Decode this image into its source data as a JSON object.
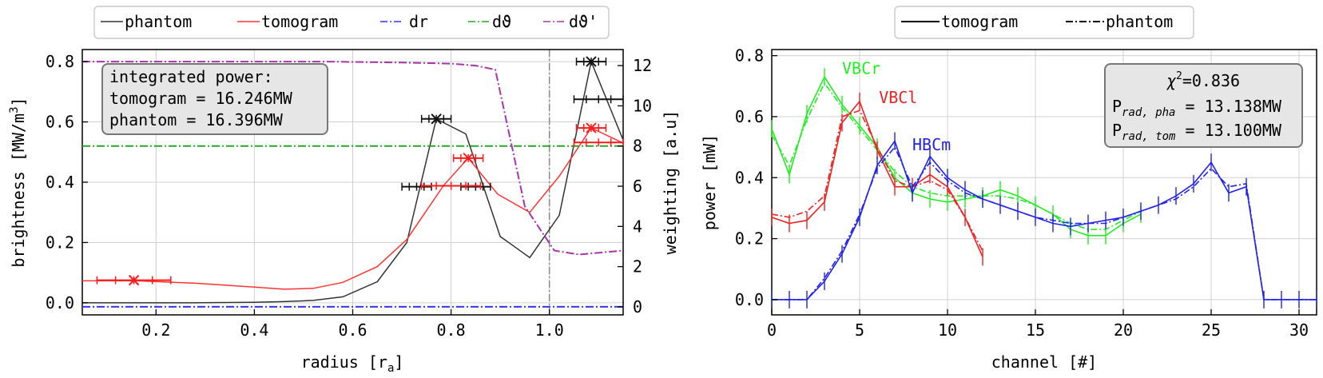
{
  "chart_data": [
    {
      "type": "line",
      "xlabel": "radius [r",
      "xlabel_sub": "a",
      "xlabel_end": "]",
      "ylabel": "brightness [MW/m",
      "ylabel_sup": "3",
      "ylabel_end": "]",
      "y2label": "weighting [a.u]",
      "xlim": [
        0.05,
        1.15
      ],
      "ylim": [
        -0.04,
        0.84
      ],
      "y2lim": [
        -0.4,
        12.8
      ],
      "xticks": [
        "0.2",
        "0.4",
        "0.6",
        "0.8",
        "1.0"
      ],
      "yticks": [
        "0.0",
        "0.2",
        "0.4",
        "0.6",
        "0.8"
      ],
      "y2ticks": [
        "0",
        "2",
        "4",
        "6",
        "8",
        "10",
        "12"
      ],
      "grid": true,
      "vline_x": 1.0,
      "legend": {
        "placement": "top",
        "entries": [
          "phantom",
          "tomogram",
          "dr",
          "dϑ",
          "dϑ'"
        ],
        "colors": [
          "#333333",
          "#ff3333",
          "#3333ff",
          "#22aa22",
          "#aa33aa"
        ]
      },
      "annotation": {
        "line1": "integrated power:",
        "line2": "tomogram = 16.246MW",
        "line3": "phantom = 16.396MW"
      },
      "series": [
        {
          "name": "phantom",
          "color": "#333333",
          "x": [
            0.05,
            0.16,
            0.28,
            0.4,
            0.46,
            0.52,
            0.58,
            0.65,
            0.71,
            0.77,
            0.83,
            0.9,
            0.96,
            1.02,
            1.085,
            1.15
          ],
          "y": [
            0.0,
            0.0,
            0.0,
            0.002,
            0.004,
            0.008,
            0.02,
            0.07,
            0.2,
            0.61,
            0.56,
            0.22,
            0.15,
            0.29,
            0.8,
            0.54
          ]
        },
        {
          "name": "tomogram",
          "color": "#ff3333",
          "x": [
            0.05,
            0.16,
            0.28,
            0.4,
            0.46,
            0.52,
            0.58,
            0.65,
            0.71,
            0.785,
            0.835,
            0.895,
            0.96,
            1.02,
            1.085,
            1.15
          ],
          "y": [
            0.073,
            0.073,
            0.065,
            0.052,
            0.045,
            0.048,
            0.068,
            0.12,
            0.21,
            0.39,
            0.48,
            0.36,
            0.3,
            0.42,
            0.58,
            0.53
          ]
        },
        {
          "name": "dr",
          "color": "#3333ff",
          "axis": "right",
          "x": [
            0.05,
            1.15
          ],
          "y": [
            0.0,
            0.0
          ]
        },
        {
          "name": "dϑ",
          "color": "#22aa22",
          "axis": "right",
          "x": [
            0.05,
            1.15
          ],
          "y": [
            8.0,
            8.0
          ]
        },
        {
          "name": "dϑ'",
          "color": "#aa33aa",
          "axis": "right",
          "x": [
            0.05,
            0.3,
            0.55,
            0.7,
            0.8,
            0.85,
            0.89,
            0.95,
            1.01,
            1.06,
            1.15
          ],
          "y": [
            12.2,
            12.2,
            12.2,
            12.15,
            12.1,
            12.0,
            11.8,
            5.0,
            2.8,
            2.6,
            2.8
          ]
        }
      ],
      "markers": {
        "phantom": [
          {
            "x": 0.77,
            "y": 0.61,
            "xerr": 0.03
          },
          {
            "x": 1.085,
            "y": 0.8,
            "xerr": 0.03
          },
          {
            "x": 0.73,
            "y": 0.385,
            "xerr": 0.03
          },
          {
            "x": 0.85,
            "y": 0.385,
            "xerr": 0.03
          },
          {
            "x": 1.1,
            "y": 0.675,
            "xerr": 0.05
          }
        ],
        "tomogram": [
          {
            "x": 0.155,
            "y": 0.075,
            "xerr": 0.075
          },
          {
            "x": 0.835,
            "y": 0.48,
            "xerr": 0.03
          },
          {
            "x": 1.085,
            "y": 0.58,
            "xerr": 0.03
          },
          {
            "x": 0.8,
            "y": 0.388,
            "xerr": 0.06
          },
          {
            "x": 1.1,
            "y": 0.532,
            "xerr": 0.05
          }
        ]
      }
    },
    {
      "type": "line",
      "xlabel": "channel [#]",
      "ylabel": "power [mW]",
      "xlim": [
        0,
        31
      ],
      "ylim": [
        -0.05,
        0.82
      ],
      "xticks": [
        "0",
        "5",
        "10",
        "15",
        "20",
        "25",
        "30"
      ],
      "yticks": [
        "0.0",
        "0.2",
        "0.4",
        "0.6",
        "0.8"
      ],
      "grid": true,
      "legend": {
        "placement": "top",
        "entries": [
          "tomogram",
          "phantom"
        ]
      },
      "annotation": {
        "chi": "χ",
        "chi_sup": "2",
        "chi_val": "=0.836",
        "p1": "P",
        "p1_sub": "rad, pha",
        "p1_val": " = 13.138MW",
        "p2": "P",
        "p2_sub": "rad, tom",
        "p2_val": " = 13.100MW"
      },
      "series": [
        {
          "name": "VBCr",
          "color": "#22ee22",
          "x": [
            0,
            1,
            2,
            3,
            4,
            5,
            6,
            7,
            8,
            9,
            10,
            11,
            12,
            13,
            14,
            15,
            16,
            17,
            18,
            19,
            20,
            21
          ],
          "tomogram": [
            0.56,
            0.41,
            0.61,
            0.73,
            0.64,
            0.57,
            0.5,
            0.4,
            0.35,
            0.33,
            0.32,
            0.33,
            0.34,
            0.36,
            0.34,
            0.31,
            0.28,
            0.23,
            0.21,
            0.21,
            0.25,
            0.28
          ],
          "phantom": [
            0.54,
            0.44,
            0.59,
            0.71,
            0.63,
            0.56,
            0.49,
            0.42,
            0.37,
            0.35,
            0.34,
            0.34,
            0.34,
            0.34,
            0.33,
            0.31,
            0.28,
            0.25,
            0.23,
            0.23,
            0.26,
            0.29
          ]
        },
        {
          "name": "VBCl",
          "color": "#ee2222",
          "x": [
            0,
            1,
            2,
            3,
            4,
            5,
            6,
            7,
            8,
            9,
            10,
            11,
            12
          ],
          "tomogram": [
            0.27,
            0.25,
            0.26,
            0.32,
            0.58,
            0.65,
            0.49,
            0.37,
            0.37,
            0.41,
            0.37,
            0.27,
            0.14
          ],
          "phantom": [
            0.28,
            0.27,
            0.29,
            0.34,
            0.6,
            0.62,
            0.5,
            0.39,
            0.37,
            0.39,
            0.36,
            0.27,
            0.16
          ]
        },
        {
          "name": "HBCm",
          "color": "#2222ee",
          "x": [
            0,
            1,
            2,
            3,
            4,
            5,
            6,
            7,
            8,
            9,
            10,
            11,
            12,
            13,
            14,
            15,
            16,
            17,
            18,
            19,
            20,
            21,
            22,
            23,
            24,
            25,
            26,
            27,
            28,
            29,
            30,
            31
          ],
          "tomogram": [
            0.0,
            0.0,
            0.0,
            0.06,
            0.15,
            0.27,
            0.44,
            0.52,
            0.35,
            0.47,
            0.4,
            0.36,
            0.33,
            0.31,
            0.29,
            0.27,
            0.25,
            0.24,
            0.25,
            0.26,
            0.27,
            0.29,
            0.31,
            0.34,
            0.38,
            0.45,
            0.35,
            0.37,
            0.0,
            0.0,
            0.0,
            0.0
          ],
          "phantom": [
            0.0,
            0.0,
            0.0,
            0.07,
            0.16,
            0.28,
            0.43,
            0.5,
            0.37,
            0.45,
            0.39,
            0.35,
            0.33,
            0.31,
            0.29,
            0.27,
            0.26,
            0.25,
            0.25,
            0.25,
            0.27,
            0.29,
            0.31,
            0.33,
            0.37,
            0.43,
            0.37,
            0.38,
            0.0,
            0.0,
            0.0,
            0.0
          ]
        }
      ],
      "series_labels": [
        {
          "text": "VBCr",
          "x": 4.0,
          "y": 0.74,
          "color": "#22ee22"
        },
        {
          "text": "VBCl",
          "x": 6.1,
          "y": 0.645,
          "color": "#ee2222"
        },
        {
          "text": "HBCm",
          "x": 8.0,
          "y": 0.49,
          "color": "#2222ee"
        }
      ]
    }
  ]
}
